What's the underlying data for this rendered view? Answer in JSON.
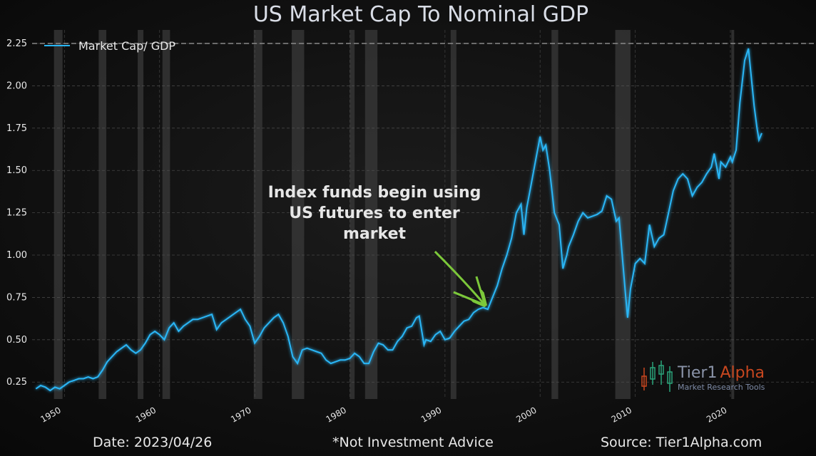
{
  "chart_data": {
    "type": "line",
    "title": "US Market Cap To Nominal GDP",
    "xlabel": "",
    "ylabel": "",
    "xlim": [
      1946.6,
      2029.0
    ],
    "ylim": [
      0.15,
      2.33
    ],
    "yticks": [
      0.25,
      0.5,
      0.75,
      1.0,
      1.25,
      1.5,
      1.75,
      2.0,
      2.25
    ],
    "ytick_labels": [
      "0.25",
      "0.50",
      "0.75",
      "1.00",
      "1.25",
      "1.50",
      "1.75",
      "2.00",
      "2.25"
    ],
    "xticks": [
      1950,
      1960,
      1970,
      1980,
      1990,
      2000,
      2010,
      2020
    ],
    "xtick_labels": [
      "1950",
      "1960",
      "1970",
      "1980",
      "1990",
      "2000",
      "2010",
      "2020"
    ],
    "grid": true,
    "reference_line": 2.25,
    "legend": {
      "placement": "top-left",
      "entries": [
        "Market Cap/ GDP"
      ]
    },
    "series": [
      {
        "name": "Market Cap/ GDP",
        "color": "#29b6f6",
        "x": [
          1947.0,
          1947.5,
          1948.0,
          1948.5,
          1949.0,
          1949.5,
          1950.0,
          1950.5,
          1951.0,
          1951.5,
          1952.0,
          1952.5,
          1953.0,
          1953.5,
          1954.0,
          1954.5,
          1955.0,
          1955.5,
          1956.0,
          1956.5,
          1957.0,
          1957.5,
          1958.0,
          1958.5,
          1959.0,
          1959.5,
          1960.0,
          1960.5,
          1961.0,
          1961.5,
          1962.0,
          1962.5,
          1963.0,
          1963.5,
          1964.0,
          1965.0,
          1965.5,
          1966.0,
          1966.5,
          1967.0,
          1967.5,
          1968.0,
          1968.5,
          1969.0,
          1969.5,
          1970.0,
          1970.5,
          1971.0,
          1971.5,
          1972.0,
          1972.5,
          1973.0,
          1973.5,
          1974.0,
          1974.5,
          1975.0,
          1975.5,
          1976.0,
          1976.5,
          1977.0,
          1977.5,
          1978.0,
          1978.5,
          1979.0,
          1979.5,
          1980.0,
          1980.5,
          1981.0,
          1981.5,
          1982.0,
          1982.5,
          1983.0,
          1983.5,
          1984.0,
          1984.5,
          1985.0,
          1985.5,
          1986.0,
          1986.5,
          1987.0,
          1987.3,
          1987.8,
          1988.0,
          1988.5,
          1989.0,
          1989.5,
          1990.0,
          1990.5,
          1991.0,
          1991.5,
          1992.0,
          1992.5,
          1993.0,
          1993.5,
          1994.0,
          1994.5,
          1995.0,
          1995.5,
          1996.0,
          1996.5,
          1997.0,
          1997.5,
          1998.0,
          1998.3,
          1998.6,
          1999.0,
          1999.5,
          2000.0,
          2000.3,
          2000.6,
          2001.0,
          2001.5,
          2002.0,
          2002.4,
          2002.8,
          2003.0,
          2003.5,
          2004.0,
          2004.5,
          2005.0,
          2005.5,
          2006.0,
          2006.5,
          2007.0,
          2007.5,
          2008.0,
          2008.3,
          2008.7,
          2009.0,
          2009.2,
          2009.5,
          2010.0,
          2010.5,
          2011.0,
          2011.5,
          2012.0,
          2012.5,
          2013.0,
          2013.5,
          2014.0,
          2014.5,
          2015.0,
          2015.5,
          2016.0,
          2016.5,
          2017.0,
          2017.5,
          2018.0,
          2018.3,
          2018.8,
          2019.0,
          2019.5,
          2020.0,
          2020.2,
          2020.6,
          2021.0,
          2021.5,
          2021.9,
          2022.2,
          2022.5,
          2022.8,
          2023.0,
          2023.3
        ],
        "values": [
          0.21,
          0.23,
          0.22,
          0.2,
          0.22,
          0.21,
          0.23,
          0.25,
          0.26,
          0.27,
          0.27,
          0.28,
          0.27,
          0.28,
          0.32,
          0.37,
          0.4,
          0.43,
          0.45,
          0.47,
          0.44,
          0.42,
          0.44,
          0.48,
          0.53,
          0.55,
          0.53,
          0.5,
          0.57,
          0.6,
          0.55,
          0.58,
          0.6,
          0.62,
          0.62,
          0.64,
          0.65,
          0.56,
          0.6,
          0.62,
          0.64,
          0.66,
          0.68,
          0.62,
          0.58,
          0.48,
          0.52,
          0.57,
          0.6,
          0.63,
          0.65,
          0.6,
          0.52,
          0.4,
          0.36,
          0.44,
          0.45,
          0.44,
          0.43,
          0.42,
          0.38,
          0.36,
          0.37,
          0.38,
          0.38,
          0.39,
          0.42,
          0.4,
          0.36,
          0.36,
          0.43,
          0.48,
          0.47,
          0.44,
          0.44,
          0.49,
          0.52,
          0.57,
          0.58,
          0.63,
          0.64,
          0.47,
          0.5,
          0.49,
          0.53,
          0.55,
          0.5,
          0.51,
          0.55,
          0.58,
          0.61,
          0.62,
          0.66,
          0.68,
          0.69,
          0.68,
          0.75,
          0.82,
          0.92,
          1.0,
          1.1,
          1.25,
          1.3,
          1.12,
          1.28,
          1.4,
          1.55,
          1.7,
          1.62,
          1.65,
          1.5,
          1.25,
          1.18,
          0.92,
          1.0,
          1.05,
          1.12,
          1.2,
          1.25,
          1.22,
          1.23,
          1.24,
          1.26,
          1.35,
          1.33,
          1.2,
          1.22,
          0.95,
          0.75,
          0.63,
          0.8,
          0.95,
          0.98,
          0.95,
          1.18,
          1.05,
          1.1,
          1.12,
          1.25,
          1.38,
          1.45,
          1.48,
          1.45,
          1.35,
          1.4,
          1.43,
          1.48,
          1.52,
          1.6,
          1.45,
          1.55,
          1.52,
          1.58,
          1.55,
          1.62,
          1.9,
          2.15,
          2.22,
          2.05,
          1.88,
          1.75,
          1.68,
          1.72
        ]
      }
    ],
    "recessions": [
      [
        1948.9,
        1949.8
      ],
      [
        1953.6,
        1954.4
      ],
      [
        1957.7,
        1958.3
      ],
      [
        1960.3,
        1961.1
      ],
      [
        1969.9,
        1970.8
      ],
      [
        1973.9,
        1975.2
      ],
      [
        1980.0,
        1980.5
      ],
      [
        1981.6,
        1982.9
      ],
      [
        1990.6,
        1991.2
      ],
      [
        2001.2,
        2001.9
      ],
      [
        2007.9,
        2009.5
      ],
      [
        2020.1,
        2020.4
      ]
    ],
    "annotation": {
      "lines": [
        "Index funds begin using",
        "US futures to enter",
        "market"
      ],
      "arrow_to": {
        "x": 1994.5,
        "y": 0.68
      }
    }
  },
  "logo": {
    "name_part1": "Tier1",
    "name_part2": "Alpha",
    "subtitle": "Market  Research Tools"
  },
  "footer": {
    "date": "Date: 2023/04/26",
    "disclaimer": "*Not Investment Advice",
    "source": "Source: Tier1Alpha.com"
  },
  "colors": {
    "line": "#29b6f6",
    "arrow": "#7cc83a",
    "logo_alpha": "#c8471f",
    "recession": "#3a3a3a"
  }
}
